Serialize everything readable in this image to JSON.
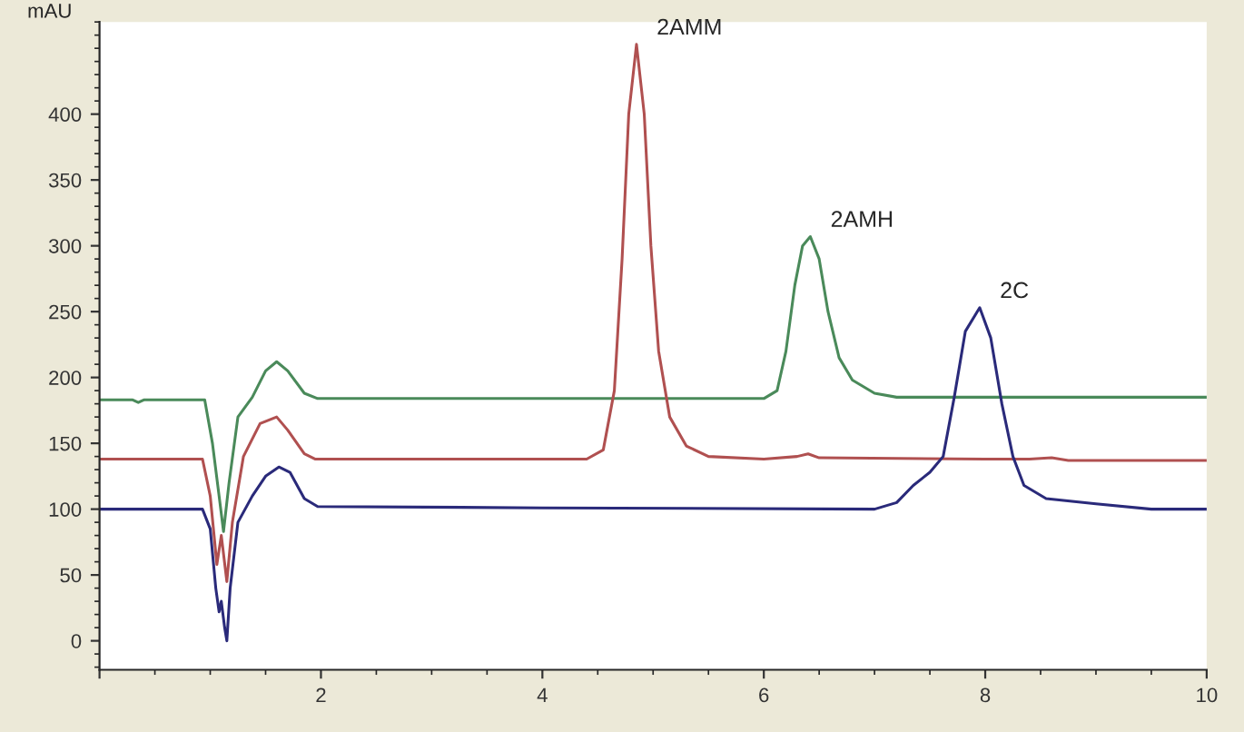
{
  "chart_data": {
    "type": "line",
    "ylabel": "mAU",
    "xlim": [
      0,
      10
    ],
    "xticks": [
      {
        "value": 0,
        "label": null
      },
      2,
      4,
      6,
      8,
      10
    ],
    "ylim": [
      -22,
      470
    ],
    "yticks": [
      0,
      50,
      100,
      150,
      200,
      250,
      300,
      350,
      400
    ],
    "grid": false,
    "legend": false,
    "marker": "none",
    "line_style": "solid",
    "annotations": [
      {
        "text": "2AMM",
        "x": 4.85,
        "y": 453
      },
      {
        "text": "2AMH",
        "x": 6.42,
        "y": 307
      },
      {
        "text": "2C",
        "x": 7.95,
        "y": 253
      }
    ],
    "series": [
      {
        "color": "#4a8a5a",
        "x": [
          0,
          0.3,
          0.35,
          0.4,
          0.95,
          1.02,
          1.08,
          1.12,
          1.17,
          1.25,
          1.38,
          1.5,
          1.6,
          1.7,
          1.85,
          1.97,
          6.0,
          6.12,
          6.2,
          6.28,
          6.35,
          6.42,
          6.5,
          6.58,
          6.68,
          6.8,
          7.0,
          7.2,
          8.0,
          9.0,
          10
        ],
        "values": [
          183,
          183,
          181,
          183,
          183,
          150,
          110,
          83,
          120,
          170,
          185,
          205,
          212,
          205,
          188,
          184,
          184,
          190,
          220,
          270,
          300,
          307,
          290,
          250,
          215,
          198,
          188,
          185,
          185,
          185,
          185
        ]
      },
      {
        "color": "#b05050",
        "x": [
          0,
          0.93,
          1.0,
          1.06,
          1.1,
          1.15,
          1.2,
          1.3,
          1.45,
          1.6,
          1.7,
          1.85,
          1.95,
          4.4,
          4.55,
          4.65,
          4.72,
          4.78,
          4.85,
          4.92,
          4.98,
          5.05,
          5.15,
          5.3,
          5.5,
          6.0,
          6.3,
          6.4,
          6.5,
          8.0,
          8.4,
          8.6,
          8.75,
          10
        ],
        "values": [
          138,
          138,
          110,
          58,
          80,
          45,
          90,
          140,
          165,
          170,
          160,
          142,
          138,
          138,
          145,
          190,
          290,
          400,
          453,
          400,
          300,
          220,
          170,
          148,
          140,
          138,
          140,
          142,
          139,
          138,
          138,
          139,
          137,
          137
        ]
      },
      {
        "color": "#2a2a7a",
        "x": [
          0,
          0.93,
          1.0,
          1.05,
          1.08,
          1.1,
          1.13,
          1.15,
          1.18,
          1.25,
          1.38,
          1.5,
          1.62,
          1.72,
          1.85,
          1.97,
          4.0,
          7.0,
          7.2,
          7.35,
          7.5,
          7.62,
          7.72,
          7.82,
          7.95,
          8.05,
          8.15,
          8.25,
          8.35,
          8.55,
          9.0,
          9.5,
          10
        ],
        "values": [
          100,
          100,
          85,
          40,
          22,
          30,
          10,
          0,
          40,
          90,
          110,
          125,
          132,
          128,
          108,
          102,
          101,
          100,
          105,
          118,
          128,
          140,
          185,
          235,
          253,
          230,
          180,
          140,
          118,
          108,
          104,
          100,
          100
        ]
      }
    ]
  }
}
